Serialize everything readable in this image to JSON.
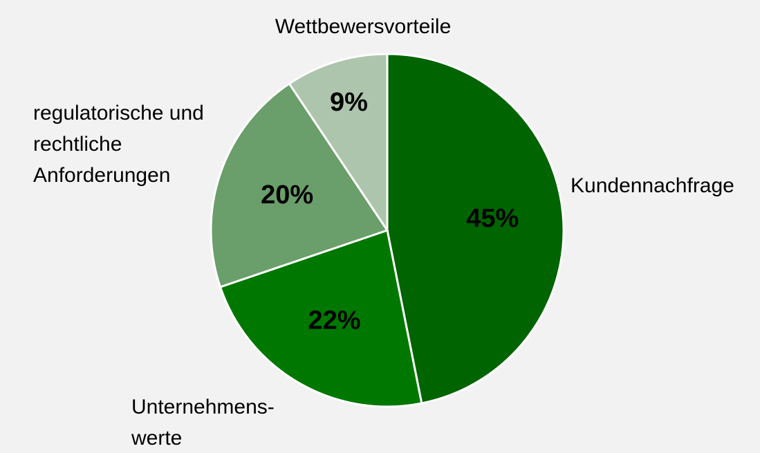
{
  "chart_data": {
    "type": "pie",
    "categories": [
      [
        "Kundennachfrage"
      ],
      [
        "Unternehmens-",
        "werte"
      ],
      [
        "regulatorische und",
        "rechtliche",
        "Anforderungen"
      ],
      [
        "Wettbewersvorteile"
      ]
    ],
    "values": [
      45,
      22,
      20,
      9
    ],
    "value_labels": [
      "45%",
      "22%",
      "20%",
      "9%"
    ],
    "colors": [
      "#006400",
      "#007800",
      "#6a9e6a",
      "#adc5ad"
    ]
  }
}
